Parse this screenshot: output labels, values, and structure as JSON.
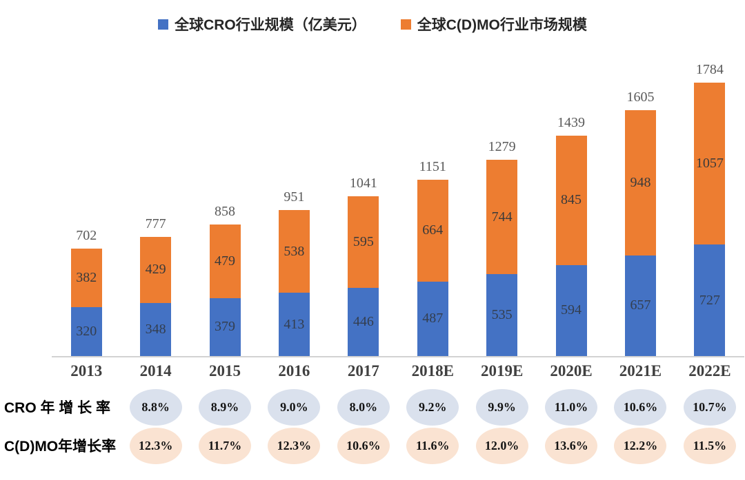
{
  "legend": [
    {
      "label": "全球CRO行业规模（亿美元）",
      "color": "#4472C4"
    },
    {
      "label": "全球C(D)MO行业市场规模",
      "color": "#ED7D31"
    }
  ],
  "chart_data": {
    "type": "bar",
    "stacked": true,
    "title": "",
    "xlabel": "",
    "ylabel": "",
    "axis_visible": false,
    "grid": false,
    "legend_position": "top",
    "categories": [
      "2013",
      "2014",
      "2015",
      "2016",
      "2017",
      "2018E",
      "2019E",
      "2020E",
      "2021E",
      "2022E"
    ],
    "series": [
      {
        "name": "全球CRO行业规模（亿美元）",
        "color": "#4472C4",
        "values": [
          320,
          348,
          379,
          413,
          446,
          487,
          535,
          594,
          657,
          727
        ]
      },
      {
        "name": "全球C(D)MO行业市场规模",
        "color": "#ED7D31",
        "values": [
          382,
          429,
          479,
          538,
          595,
          664,
          744,
          845,
          948,
          1057
        ]
      }
    ],
    "totals": [
      702,
      777,
      858,
      951,
      1041,
      1151,
      1279,
      1439,
      1605,
      1784
    ],
    "ylim": [
      0,
      1900
    ]
  },
  "growth_rows": [
    {
      "label": "CRO 年 增 长 率",
      "bg": "#DAE1ED",
      "values": [
        "8.8%",
        "8.9%",
        "9.0%",
        "8.0%",
        "9.2%",
        "9.9%",
        "11.0%",
        "10.6%",
        "10.7%"
      ],
      "starts_at": "2014"
    },
    {
      "label": "C(D)MO年增长率",
      "bg": "#FAE3D2",
      "values": [
        "12.3%",
        "11.7%",
        "12.3%",
        "10.6%",
        "11.6%",
        "12.0%",
        "13.6%",
        "12.2%",
        "11.5%"
      ],
      "starts_at": "2014"
    }
  ]
}
